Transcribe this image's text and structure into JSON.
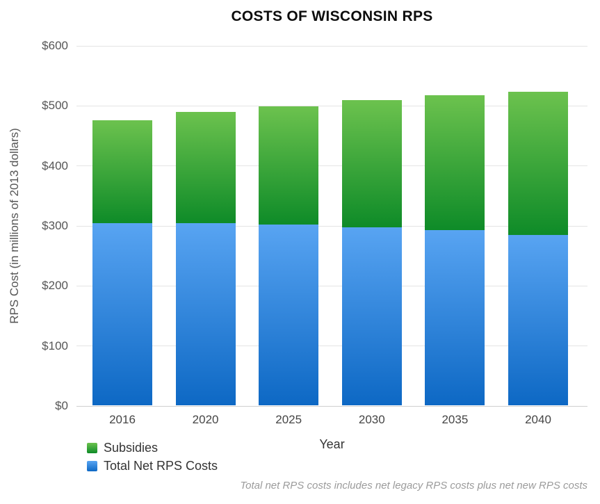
{
  "title": "COSTS OF WISCONSIN RPS",
  "footnote": "Total net RPS costs includes net legacy RPS costs plus net new RPS costs",
  "chart_data": {
    "type": "bar",
    "stacked": true,
    "title": "COSTS OF WISCONSIN RPS",
    "xlabel": "Year",
    "ylabel": "RPS Cost (in millions of 2013 dollars)",
    "categories": [
      "2016",
      "2020",
      "2025",
      "2030",
      "2035",
      "2040"
    ],
    "series": [
      {
        "name": "Total Net RPS Costs",
        "values": [
          304,
          304,
          301,
          297,
          292,
          284
        ],
        "color_top": "#58a4f2",
        "color_bottom": "#0d68c4"
      },
      {
        "name": "Subsidies",
        "values": [
          171,
          185,
          197,
          211,
          225,
          239
        ],
        "color_top": "#6cc24e",
        "color_bottom": "#0e8b28"
      }
    ],
    "stack_totals": [
      475,
      489,
      498,
      508,
      517,
      523
    ],
    "ylim": [
      0,
      600
    ],
    "yticks": [
      0,
      100,
      200,
      300,
      400,
      500,
      600
    ],
    "ytick_labels": [
      "$0",
      "$100",
      "$200",
      "$300",
      "$400",
      "$500",
      "$600"
    ],
    "grid": true,
    "legend_position": "bottom-left",
    "legend_order": [
      "Subsidies",
      "Total Net RPS Costs"
    ],
    "colors": {
      "grid": "#e4e4e4",
      "baseline": "#cfcfcf",
      "title_text": "#0d0d0d",
      "axis_text": "#565656",
      "footnote_text": "#9b9b9b"
    }
  }
}
